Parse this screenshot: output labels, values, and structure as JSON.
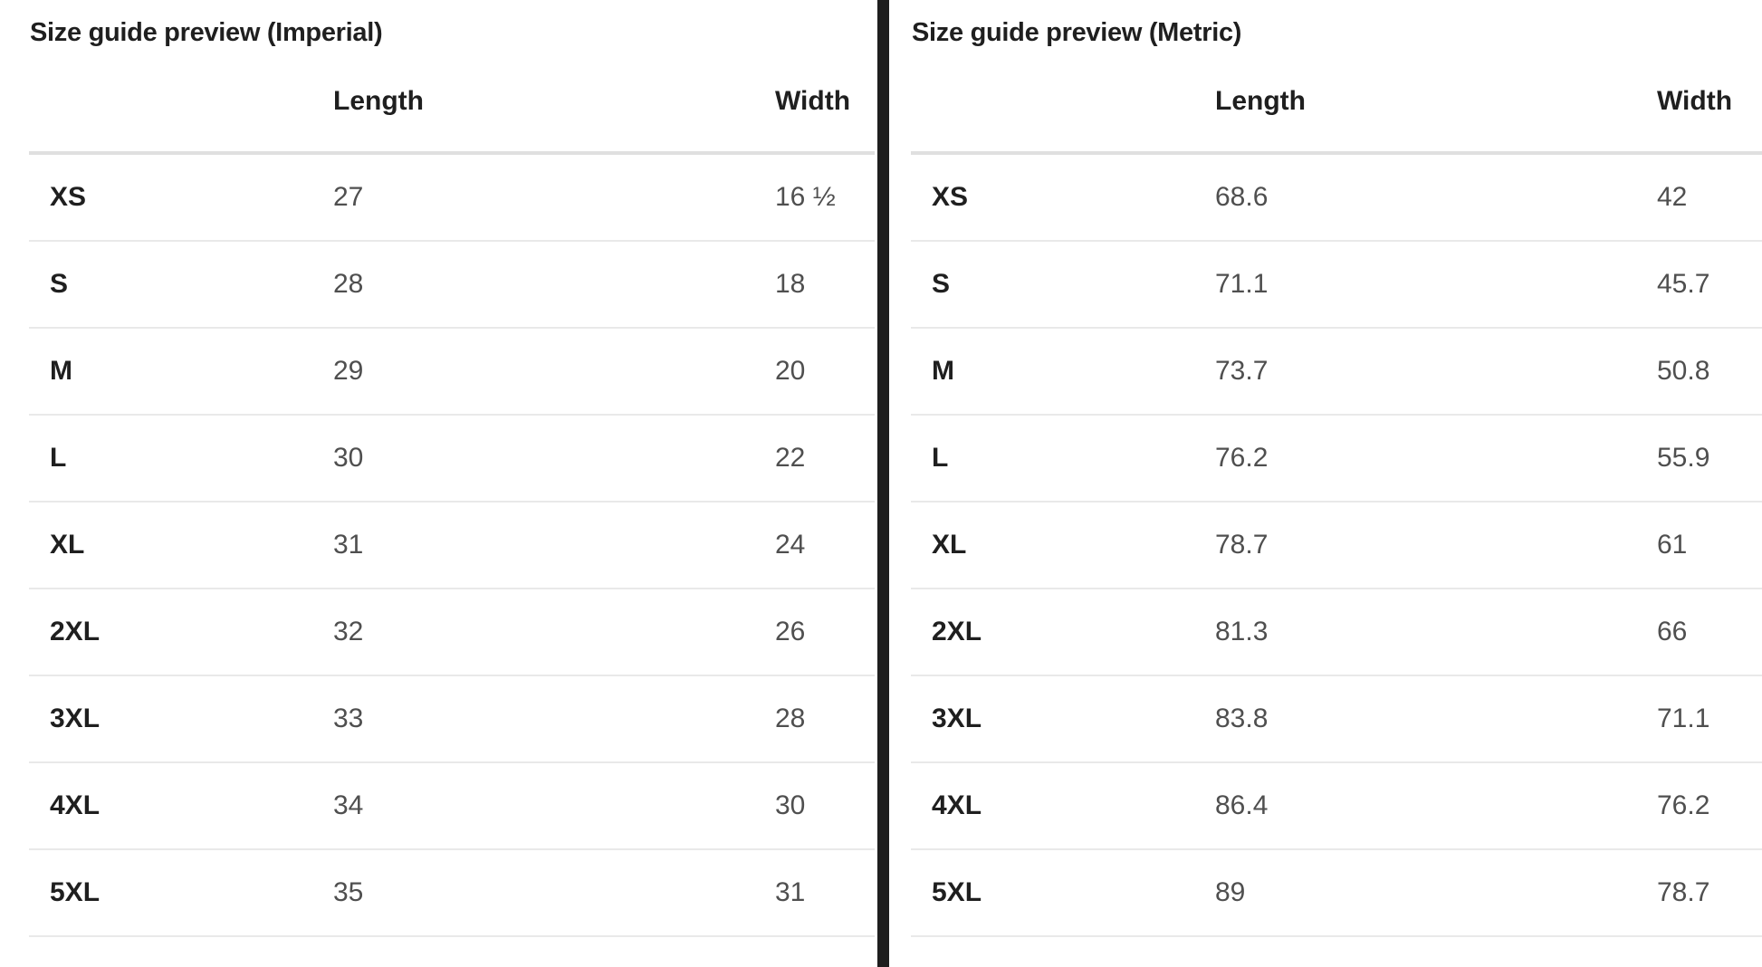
{
  "page": {
    "background_color": "#ffffff",
    "divider_color": "#1e1e1e",
    "heading_text_color": "#1f1f1f",
    "value_text_color": "#4f4f4f",
    "header_border_color": "#e0e0e0",
    "row_border_color": "#e9e9e9"
  },
  "tables": [
    {
      "id": "imperial",
      "title": "Size guide preview (Imperial)",
      "columns": [
        "Length",
        "Width"
      ],
      "rows": [
        {
          "size": "XS",
          "length": "27",
          "width": "16 ½"
        },
        {
          "size": "S",
          "length": "28",
          "width": "18"
        },
        {
          "size": "M",
          "length": "29",
          "width": "20"
        },
        {
          "size": "L",
          "length": "30",
          "width": "22"
        },
        {
          "size": "XL",
          "length": "31",
          "width": "24"
        },
        {
          "size": "2XL",
          "length": "32",
          "width": "26"
        },
        {
          "size": "3XL",
          "length": "33",
          "width": "28"
        },
        {
          "size": "4XL",
          "length": "34",
          "width": "30"
        },
        {
          "size": "5XL",
          "length": "35",
          "width": "31"
        }
      ]
    },
    {
      "id": "metric",
      "title": "Size guide preview (Metric)",
      "columns": [
        "Length",
        "Width"
      ],
      "rows": [
        {
          "size": "XS",
          "length": "68.6",
          "width": "42"
        },
        {
          "size": "S",
          "length": "71.1",
          "width": "45.7"
        },
        {
          "size": "M",
          "length": "73.7",
          "width": "50.8"
        },
        {
          "size": "L",
          "length": "76.2",
          "width": "55.9"
        },
        {
          "size": "XL",
          "length": "78.7",
          "width": "61"
        },
        {
          "size": "2XL",
          "length": "81.3",
          "width": "66"
        },
        {
          "size": "3XL",
          "length": "83.8",
          "width": "71.1"
        },
        {
          "size": "4XL",
          "length": "86.4",
          "width": "76.2"
        },
        {
          "size": "5XL",
          "length": "89",
          "width": "78.7"
        }
      ]
    }
  ]
}
